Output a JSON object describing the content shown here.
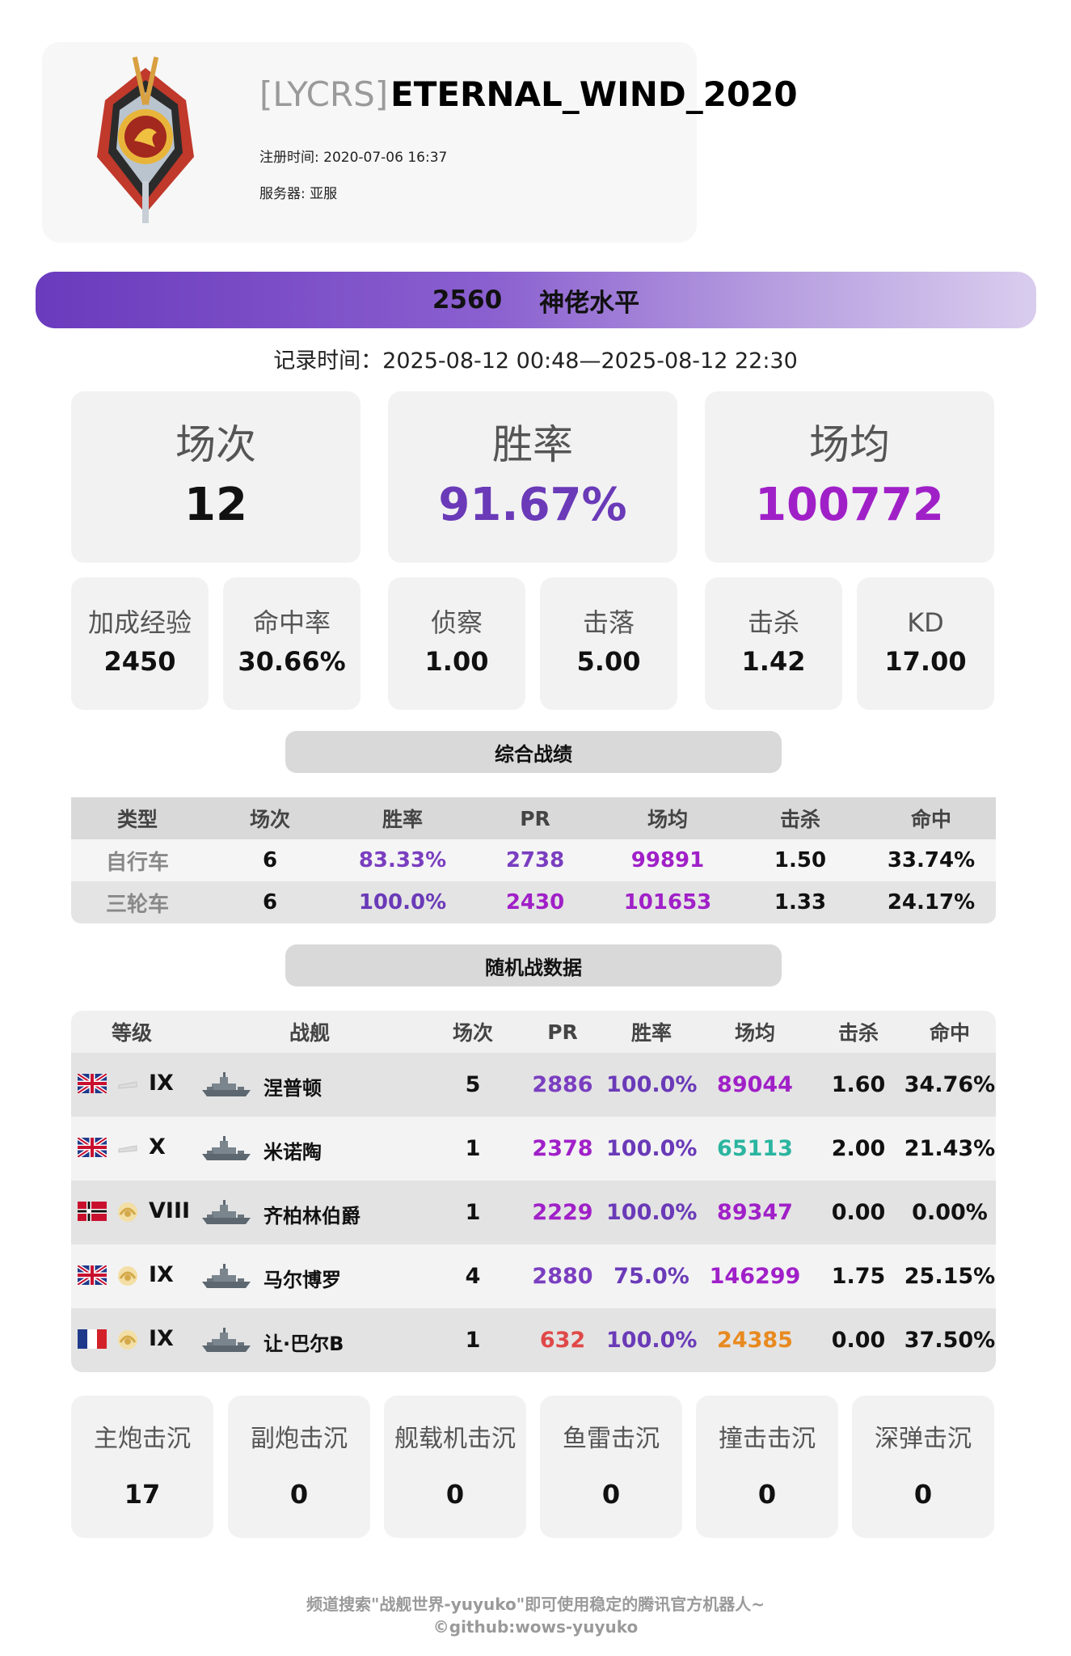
{
  "header": {
    "clan_tag": "[LYCRS]",
    "player_name": "ETERNAL_WIND_2020",
    "register_label": "注册时间: 2020-07-06 16:37",
    "server_label": "服务器: 亚服",
    "emblem_icon": "dragon-emblem-icon"
  },
  "rating": {
    "value": "2560",
    "level": "神佬水平"
  },
  "record_time": "记录时间：2025-08-12 00:48—2025-08-12 22:30",
  "main_stats": [
    {
      "label": "场次",
      "value": "12",
      "color": "#111111"
    },
    {
      "label": "胜率",
      "value": "91.67%",
      "color": "#6a3ab8"
    },
    {
      "label": "场均",
      "value": "100772",
      "color": "#a020c8"
    }
  ],
  "sub_stats": [
    {
      "label": "加成经验",
      "value": "2450"
    },
    {
      "label": "命中率",
      "value": "30.66%"
    },
    {
      "label": "侦察",
      "value": "1.00"
    },
    {
      "label": "击落",
      "value": "5.00"
    },
    {
      "label": "击杀",
      "value": "1.42"
    },
    {
      "label": "KD",
      "value": "17.00"
    }
  ],
  "overall": {
    "title": "综合战绩",
    "headers": [
      "类型",
      "场次",
      "胜率",
      "PR",
      "场均",
      "击杀",
      "命中"
    ],
    "rows": [
      {
        "type": "自行车",
        "battles": "6",
        "winrate": "83.33%",
        "pr": "2738",
        "avg": "99891",
        "kills": "1.50",
        "hit": "33.74%",
        "winrate_color": "#7a3ec0",
        "pr_color": "#7a3ec0",
        "avg_color": "#a020c8"
      },
      {
        "type": "三轮车",
        "battles": "6",
        "winrate": "100.0%",
        "pr": "2430",
        "avg": "101653",
        "kills": "1.33",
        "hit": "24.17%",
        "winrate_color": "#6a3ab8",
        "pr_color": "#a020c8",
        "avg_color": "#a020c8"
      }
    ]
  },
  "random": {
    "title": "随机战数据",
    "headers": [
      "等级",
      "战舰",
      "场次",
      "PR",
      "胜率",
      "场均",
      "击杀",
      "命中"
    ],
    "rows": [
      {
        "flag": "uk",
        "badge": "silver",
        "tier": "IX",
        "ship": "涅普顿",
        "battles": "5",
        "pr": "2886",
        "winrate": "100.0%",
        "avg": "89044",
        "kills": "1.60",
        "hit": "34.76%",
        "pr_color": "#7a3ec0",
        "winrate_color": "#6a3ab8",
        "avg_color": "#a020c8"
      },
      {
        "flag": "uk",
        "badge": "silver",
        "tier": "X",
        "ship": "米诺陶",
        "battles": "1",
        "pr": "2378",
        "winrate": "100.0%",
        "avg": "65113",
        "kills": "2.00",
        "hit": "21.43%",
        "pr_color": "#a020c8",
        "winrate_color": "#6a3ab8",
        "avg_color": "#2bb5a0"
      },
      {
        "flag": "germany",
        "badge": "gold",
        "tier": "VIII",
        "ship": "齐柏林伯爵",
        "battles": "1",
        "pr": "2229",
        "winrate": "100.0%",
        "avg": "89347",
        "kills": "0.00",
        "hit": "0.00%",
        "pr_color": "#a020c8",
        "winrate_color": "#6a3ab8",
        "avg_color": "#a020c8"
      },
      {
        "flag": "uk",
        "badge": "gold",
        "tier": "IX",
        "ship": "马尔博罗",
        "battles": "4",
        "pr": "2880",
        "winrate": "75.0%",
        "avg": "146299",
        "kills": "1.75",
        "hit": "25.15%",
        "pr_color": "#7a3ec0",
        "winrate_color": "#6a3ab8",
        "avg_color": "#a020c8"
      },
      {
        "flag": "france",
        "badge": "gold",
        "tier": "IX",
        "ship": "让·巴尔B",
        "battles": "1",
        "pr": "632",
        "winrate": "100.0%",
        "avg": "24385",
        "kills": "0.00",
        "hit": "37.50%",
        "pr_color": "#e04848",
        "winrate_color": "#6a3ab8",
        "avg_color": "#e88a20"
      }
    ]
  },
  "kill_types": [
    {
      "label": "主炮击沉",
      "value": "17"
    },
    {
      "label": "副炮击沉",
      "value": "0"
    },
    {
      "label": "舰载机击沉",
      "value": "0"
    },
    {
      "label": "鱼雷击沉",
      "value": "0"
    },
    {
      "label": "撞击击沉",
      "value": "0"
    },
    {
      "label": "深弹击沉",
      "value": "0"
    }
  ],
  "footer": {
    "line1": "频道搜索\"战舰世界-yuyuko\"即可使用稳定的腾讯官方机器人~",
    "line2": "©github:wows-yuyuko"
  }
}
